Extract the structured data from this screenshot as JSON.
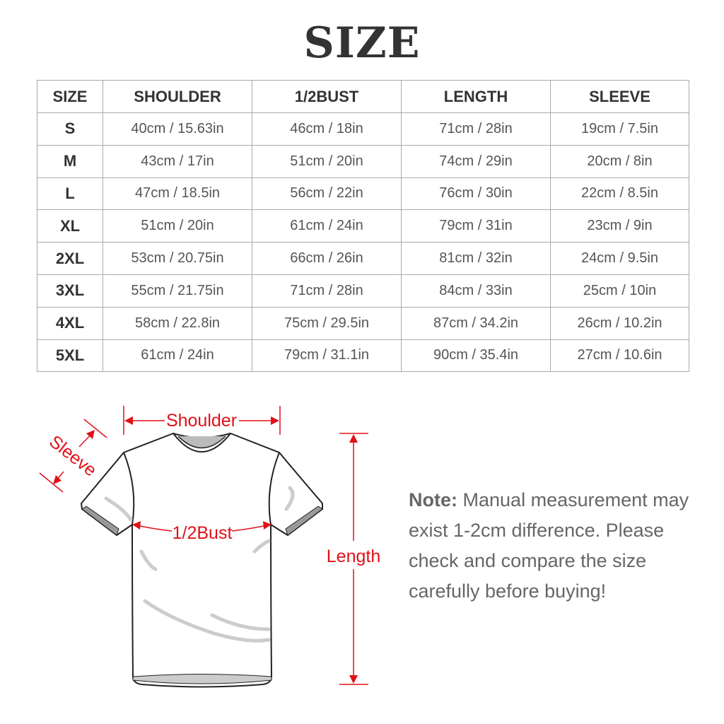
{
  "title": "SIZE",
  "table": {
    "headers": [
      "SIZE",
      "SHOULDER",
      "1/2BUST",
      "LENGTH",
      "SLEEVE"
    ],
    "rows": [
      [
        "S",
        "40cm / 15.63in",
        "46cm / 18in",
        "71cm / 28in",
        "19cm / 7.5in"
      ],
      [
        "M",
        "43cm / 17in",
        "51cm / 20in",
        "74cm / 29in",
        "20cm / 8in"
      ],
      [
        "L",
        "47cm / 18.5in",
        "56cm / 22in",
        "76cm / 30in",
        "22cm / 8.5in"
      ],
      [
        "XL",
        "51cm / 20in",
        "61cm / 24in",
        "79cm / 31in",
        "23cm / 9in"
      ],
      [
        "2XL",
        "53cm / 20.75in",
        "66cm / 26in",
        "81cm / 32in",
        "24cm / 9.5in"
      ],
      [
        "3XL",
        "55cm / 21.75in",
        "71cm / 28in",
        "84cm / 33in",
        "25cm / 10in"
      ],
      [
        "4XL",
        "58cm / 22.8in",
        "75cm / 29.5in",
        "87cm / 34.2in",
        "26cm / 10.2in"
      ],
      [
        "5XL",
        "61cm / 24in",
        "79cm / 31.1in",
        "90cm / 35.4in",
        "27cm / 10.6in"
      ]
    ]
  },
  "diagram": {
    "labels": {
      "shoulder": "Shoulder",
      "sleeve": "Sleeve",
      "bust": "1/2Bust",
      "length": "Length"
    },
    "accent_color": "#e0101a"
  },
  "note": {
    "label": "Note:",
    "text": "Manual measurement may exist 1-2cm difference. Please check and compare the size carefully before buying!"
  }
}
